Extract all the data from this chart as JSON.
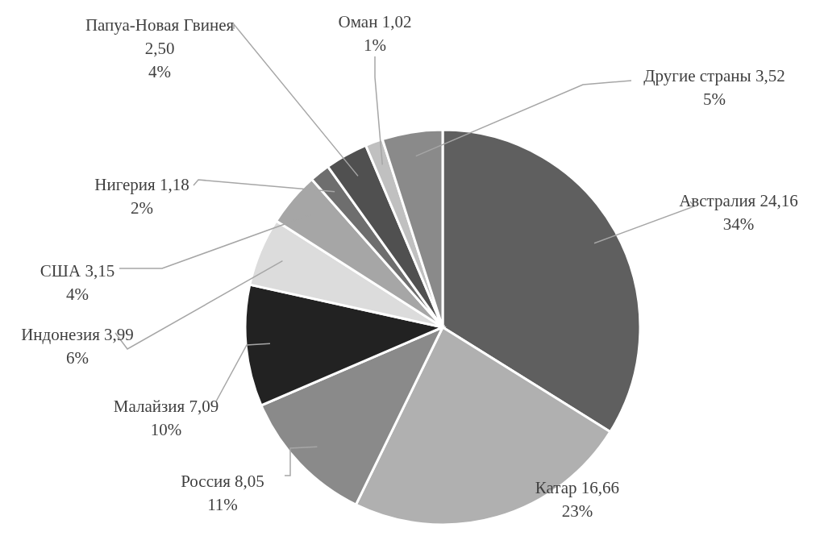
{
  "chart_data": {
    "type": "pie",
    "categories": [
      "Австралия",
      "Катар",
      "Россия",
      "Малайзия",
      "Индонезия",
      "США",
      "Нигерия",
      "Папуа-Новая Гвинея",
      "Оман",
      "Другие страны"
    ],
    "values": [
      24.16,
      16.66,
      8.05,
      7.09,
      3.99,
      3.15,
      1.18,
      2.5,
      1.02,
      3.52
    ],
    "value_labels": [
      "24,16\n34%",
      "16,66\n23%",
      "8,05\n11%",
      "7,09\n10%",
      "3,99\n6%",
      "3,15\n4%",
      "1,18\n2%",
      "2,50\n4%",
      "1,02\n1%",
      "3,52\n5%"
    ],
    "colors": [
      "#5f5f5f",
      "#b0b0b0",
      "#8a8a8a",
      "#222222",
      "#dcdcdc",
      "#a6a6a6",
      "#6e6e6e",
      "#505050",
      "#c0c0c0",
      "#8a8a8a"
    ]
  }
}
